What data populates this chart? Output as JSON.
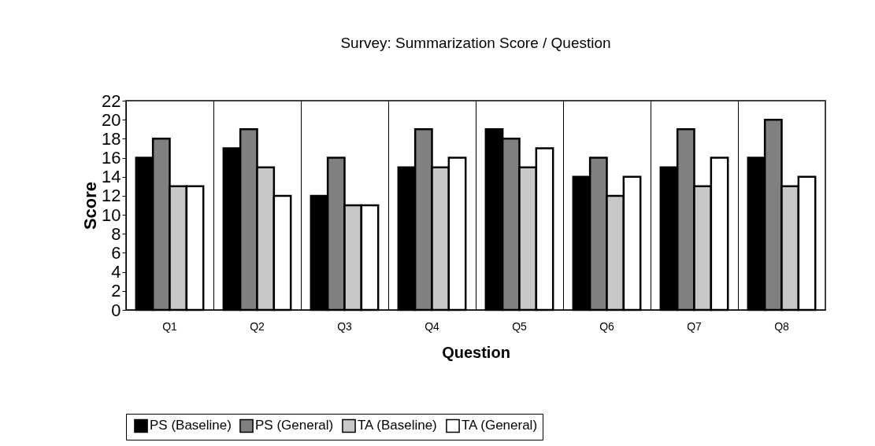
{
  "chart_data": {
    "type": "bar",
    "title": "Survey: Summarization Score / Question",
    "xlabel": "Question",
    "ylabel": "Score",
    "categories": [
      "Q1",
      "Q2",
      "Q3",
      "Q4",
      "Q5",
      "Q6",
      "Q7",
      "Q8"
    ],
    "series": [
      {
        "name": "PS (Baseline)",
        "color": "#000000",
        "values": [
          16,
          17,
          12,
          15,
          19,
          14,
          15,
          16
        ]
      },
      {
        "name": "PS (General)",
        "color": "#808080",
        "values": [
          18,
          19,
          16,
          19,
          18,
          16,
          19,
          20
        ]
      },
      {
        "name": "TA (Baseline)",
        "color": "#c8c8c8",
        "values": [
          13,
          15,
          11,
          15,
          15,
          12,
          13,
          13
        ]
      },
      {
        "name": "TA (General)",
        "color": "#ffffff",
        "values": [
          13,
          12,
          11,
          16,
          17,
          14,
          16,
          14
        ]
      }
    ],
    "ylim": [
      0,
      22
    ],
    "yticks": [
      0,
      2,
      4,
      6,
      8,
      10,
      12,
      14,
      16,
      18,
      20,
      22
    ],
    "grid": "x",
    "legend": "bottom"
  }
}
